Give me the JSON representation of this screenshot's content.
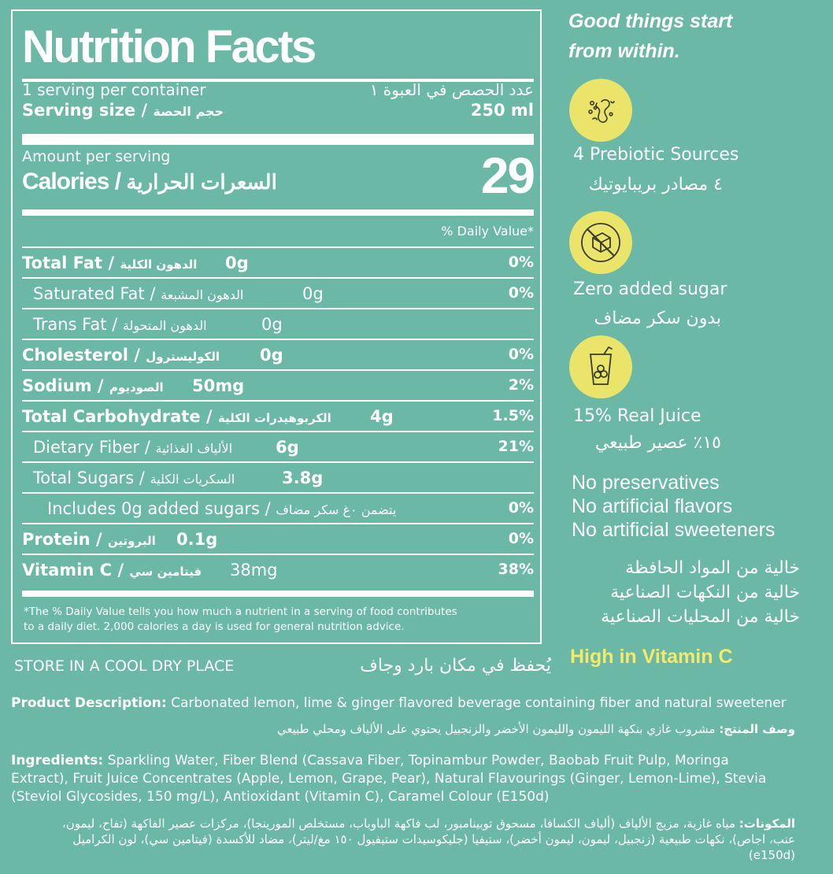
{
  "label": {
    "title": "Nutrition Facts",
    "servings_en": "1 serving per container",
    "servings_ar": "عدد الحصص في العبوة ١",
    "serving_size_en": "Serving size /",
    "serving_size_ar": "حجم الحصة",
    "serving_size_value": "250 ml",
    "amount_per_serving": "Amount per serving",
    "calories_en": "Calories /",
    "calories_ar": "السعرات الحرارية",
    "calories_value": "29",
    "dv_header": "% Daily Value*",
    "rows": [
      {
        "en": "Total Fat /",
        "ar": "الدهون الكلية",
        "amount": "0g",
        "dv": "0%"
      },
      {
        "en": "Saturated Fat /",
        "ar": "الدهون المشبعة",
        "amount": "0g",
        "dv": "0%"
      },
      {
        "en": "Trans Fat /",
        "ar": "الدهون المتحولة",
        "amount": "0g",
        "dv": ""
      },
      {
        "en": "Cholesterol /",
        "ar": "الكوليسترول",
        "amount": "0g",
        "dv": "0%"
      },
      {
        "en": "Sodium /",
        "ar": "الصوديوم",
        "amount": "50mg",
        "dv": "2%"
      },
      {
        "en": "Total Carbohydrate /",
        "ar": "الكربوهيدرات الكلية",
        "amount": "4g",
        "dv": "1.5%"
      },
      {
        "en": "Dietary Fiber /",
        "ar": "الألياف الغذائية",
        "amount": "6g",
        "dv": "21%"
      },
      {
        "en": "Total Sugars /",
        "ar": "السكريات الكلية",
        "amount": "3.8g",
        "dv": ""
      },
      {
        "en": "Includes 0g added sugars /",
        "ar": "يتضمن ٠غ سكر مضاف",
        "amount": "",
        "dv": "0%"
      },
      {
        "en": "Protein /",
        "ar": "البروتين",
        "amount": "0.1g",
        "dv": "0%"
      },
      {
        "en": "Vitamin C /",
        "ar": "فيتامين سي",
        "amount": "38mg",
        "dv": "38%"
      }
    ],
    "footnote_line1": "*The % Daily Value tells you how much a nutrient in a serving of food contributes",
    "footnote_line2": "to a daily diet. 2,000 calories a day is used for general nutrition advice."
  },
  "side": {
    "headline_line1": "Good things start",
    "headline_line2": "from within.",
    "features": [
      {
        "icon": "prebiotic-icon",
        "en": "4 Prebiotic Sources",
        "ar": "٤ مصادر بريبايوتيك"
      },
      {
        "icon": "no-sugar-icon",
        "en": "Zero added sugar",
        "ar": "بدون سكر مضاف"
      },
      {
        "icon": "juice-icon",
        "en": "15% Real Juice",
        "ar": "١٥٪ عصير طبيعي"
      }
    ],
    "claims_en": [
      "No preservatives",
      "No artificial flavors",
      "No artificial sweeteners"
    ],
    "claims_ar": [
      "خالية من المواد الحافظة",
      "خالية من النكهات الصناعية",
      "خالية من المحليات الصناعية"
    ],
    "vitamin_c": "High in Vitamin C",
    "accent_color": "#f1ea6a",
    "circle_color": "#eae56a"
  },
  "bottom": {
    "store_en": "STORE IN A COOL DRY PLACE",
    "store_ar": "يُحفظ في مكان بارد وجاف",
    "desc_label_en": "Product Description:",
    "desc_en": " Carbonated lemon, lime & ginger flavored beverage containing fiber and natural sweetener",
    "desc_label_ar": "وصف المنتج:",
    "desc_ar": " مشروب غازي بنكهة الليمون والليمون الأخضر والزنجبيل يحتوي على الألياف ومحلي طبيعي",
    "ingredients_label_en": "Ingredients:",
    "ingredients_en": " Sparkling Water, Fiber Blend (Cassava Fiber, Topinambur Powder, Baobab Fruit Pulp, Moringa Extract), Fruit Juice Concentrates (Apple, Lemon, Grape, Pear), Natural Flavourings (Ginger, Lemon-Lime), Stevia (Steviol Glycosides, 150 mg/L), Antioxidant (Vitamin C), Caramel Colour (E150d)",
    "ingredients_label_ar": "المكونات:",
    "ingredients_ar": " مياه غازية، مزيج الألياف (ألياف الكسافا، مسحوق توبينامبور، لب فاكهة الباوباب، مستخلص المورينجا)، مركزات عصير الفاكهة (تفاح، ليمون، عنب، اجاص)، نكهات طبيعية (زنجبيل، ليمون، ليمون أخضر)، ستيفيا (جليكوسيدات ستيفيول ١٥٠ مغ/ليتر)، مضاد للأكسدة (فيتامين سي)، لون الكراميل (e150d)"
  },
  "background_color": "#6ab8a5"
}
